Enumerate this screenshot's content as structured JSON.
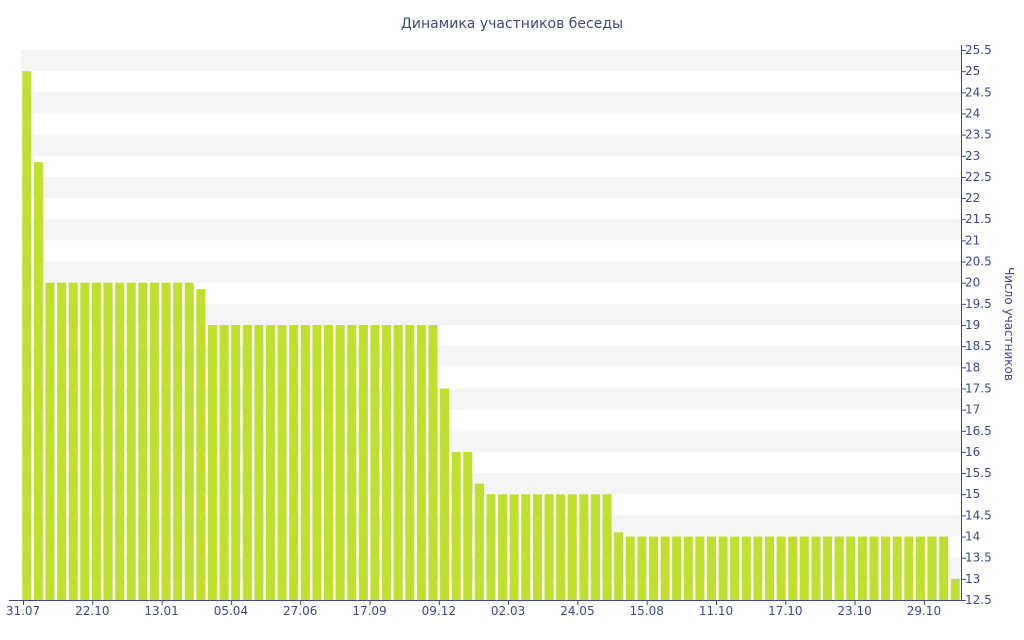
{
  "chart_data": {
    "type": "bar",
    "title": "Динамика участников беседы",
    "xlabel": "",
    "ylabel": "Число участников",
    "ylim": [
      12.5,
      25.5
    ],
    "ytick_step": 0.5,
    "bar_color": "#c0e030",
    "band_color": "#f5f5f5",
    "text_color": "#3a4a8c",
    "axis_color": "#3a4a8c",
    "x_tick_labels": [
      "31.07",
      "22.10",
      "13.01",
      "05.04",
      "27.06",
      "17.09",
      "09.12",
      "02.03",
      "24.05",
      "15.08",
      "11.10",
      "17.10",
      "23.10",
      "29.10"
    ],
    "values": [
      25,
      22.85,
      20,
      20,
      20,
      20,
      20,
      20,
      20,
      20,
      20,
      20,
      20,
      20,
      20,
      19.85,
      19,
      19,
      19,
      19,
      19,
      19,
      19,
      19,
      19,
      19,
      19,
      19,
      19,
      19,
      19,
      19,
      19,
      19,
      19,
      19,
      17.5,
      16,
      16,
      15.25,
      15,
      15,
      15,
      15,
      15,
      15,
      15,
      15,
      15,
      15,
      15,
      14.1,
      14,
      14,
      14,
      14,
      14,
      14,
      14,
      14,
      14,
      14,
      14,
      14,
      14,
      14,
      14,
      14,
      14,
      14,
      14,
      14,
      14,
      14,
      14,
      14,
      14,
      14,
      14,
      14,
      13
    ]
  }
}
